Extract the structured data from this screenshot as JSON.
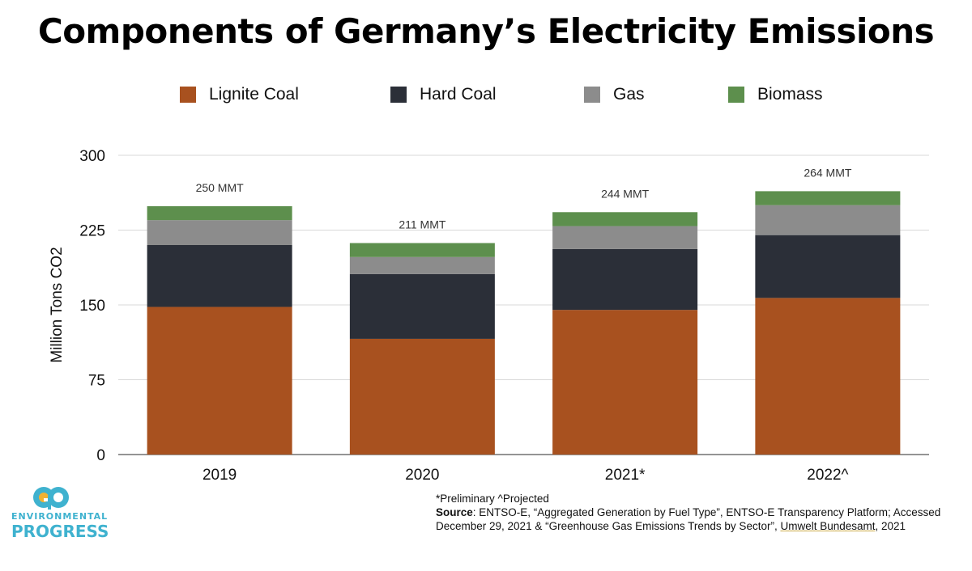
{
  "title": "Components of Germany’s Electricity Emissions",
  "legend": [
    {
      "label": "Lignite Coal",
      "color": "#a8511f"
    },
    {
      "label": "Hard Coal",
      "color": "#2b2f38"
    },
    {
      "label": "Gas",
      "color": "#8c8c8c"
    },
    {
      "label": "Biomass",
      "color": "#5d8f4d"
    }
  ],
  "chart_data": {
    "type": "bar",
    "stacked": true,
    "title": "Components of Germany’s Electricity Emissions",
    "xlabel": "",
    "ylabel": "Million Tons CO2",
    "ylim": [
      0,
      300
    ],
    "yticks": [
      0,
      75,
      150,
      225,
      300
    ],
    "grid": true,
    "legend_position": "top",
    "categories": [
      "2019",
      "2020",
      "2021*",
      "2022^"
    ],
    "series": [
      {
        "name": "Lignite Coal",
        "color": "#a8511f",
        "values": [
          148,
          116,
          145,
          157
        ]
      },
      {
        "name": "Hard Coal",
        "color": "#2b2f38",
        "values": [
          62,
          65,
          61,
          63
        ]
      },
      {
        "name": "Gas",
        "color": "#8c8c8c",
        "values": [
          25,
          17,
          23,
          30
        ]
      },
      {
        "name": "Biomass",
        "color": "#5d8f4d",
        "values": [
          14,
          14,
          14,
          14
        ]
      }
    ],
    "total_labels": [
      "250 MMT",
      "211 MMT",
      "244 MMT",
      "264 MMT"
    ]
  },
  "footnote": {
    "line1": "*Preliminary ^Projected",
    "source_label": "Source",
    "source_text_a": ": ENTSO-E, “Aggregated Generation by Fuel Type”, ENTSO-E Transparency Platform; Accessed December 29, 2021 & “Greenhouse Gas Emissions Trends by Sector”, ",
    "source_link": "Umwelt Bundesamt",
    "source_text_b": ", 2021"
  },
  "logo": {
    "line1": "ENVIRONMENTAL",
    "line2": "PROGRESS",
    "mark_color": "#3fb2cf",
    "mark_accent": "#f2b233"
  }
}
